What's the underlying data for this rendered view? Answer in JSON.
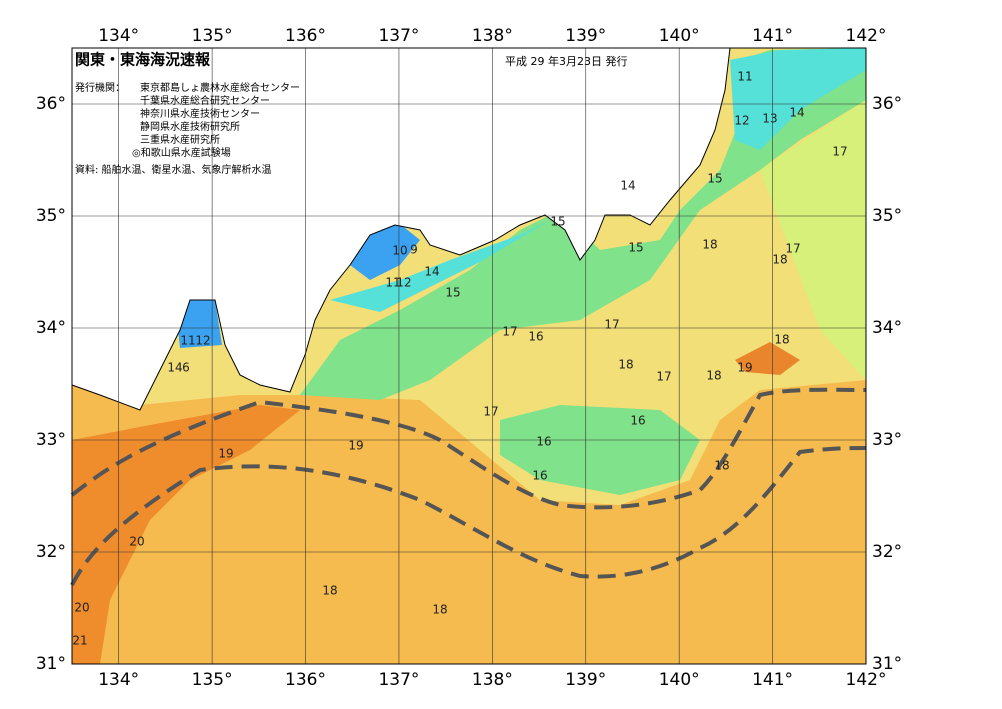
{
  "map": {
    "title": "関東・東海海況速報",
    "issued": "平成 29 年3月23日 発行",
    "publisher_label": "発行機関：",
    "publishers": [
      "東京都島しょ農林水産総合センター",
      "千葉県水産総合研究センター",
      "神奈川県水産技術センター",
      "静岡県水産技術研究所",
      "三重県水産研究所",
      "◎和歌山県水産試験場"
    ],
    "source": "資料: 船舶水温、衛星水温、気象庁解析水温",
    "lon_ticks": [
      {
        "value": 134,
        "label": "134°"
      },
      {
        "value": 135,
        "label": "135°"
      },
      {
        "value": 136,
        "label": "136°"
      },
      {
        "value": 137,
        "label": "137°"
      },
      {
        "value": 138,
        "label": "138°"
      },
      {
        "value": 139,
        "label": "139°"
      },
      {
        "value": 140,
        "label": "140°"
      },
      {
        "value": 141,
        "label": "141°"
      },
      {
        "value": 142,
        "label": "142°"
      }
    ],
    "lat_ticks": [
      {
        "value": 31,
        "label": "31°"
      },
      {
        "value": 32,
        "label": "32°"
      },
      {
        "value": 33,
        "label": "33°"
      },
      {
        "value": 34,
        "label": "34°"
      },
      {
        "value": 35,
        "label": "35°"
      },
      {
        "value": 36,
        "label": "36°"
      }
    ],
    "contour_labels": [
      11,
      12,
      13,
      14,
      17,
      15,
      14,
      15,
      18,
      17,
      18,
      10,
      9,
      14,
      15,
      11,
      12,
      15,
      17,
      16,
      17,
      18,
      17,
      18,
      19,
      18,
      11,
      12,
      14,
      6,
      17,
      19,
      19,
      16,
      16,
      16,
      18,
      20,
      18,
      18,
      20,
      21
    ]
  }
}
